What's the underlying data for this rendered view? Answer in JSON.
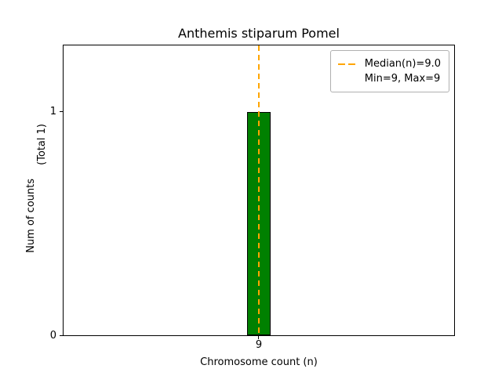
{
  "chart_data": {
    "type": "bar",
    "title": "Anthemis stiparum Pomel",
    "xlabel": "Chromosome count (n)",
    "ylabel": "Num of counts",
    "ylabel_secondary": "(Total 1)",
    "categories": [
      "9"
    ],
    "values": [
      1
    ],
    "ylim": [
      0,
      1.3
    ],
    "yticks": [
      "0",
      "1"
    ],
    "grid": false,
    "bar_color": "#008000",
    "bar_edge_color": "#000000",
    "median_line": {
      "x": 9,
      "value": 9.0,
      "color": "#FFA500",
      "style": "dashed"
    },
    "legend": {
      "position": "upper right",
      "entries": [
        {
          "sample": "dashed-line",
          "label": "Median(n)=9.0"
        },
        {
          "sample": "none",
          "label": "Min=9, Max=9"
        }
      ]
    }
  }
}
